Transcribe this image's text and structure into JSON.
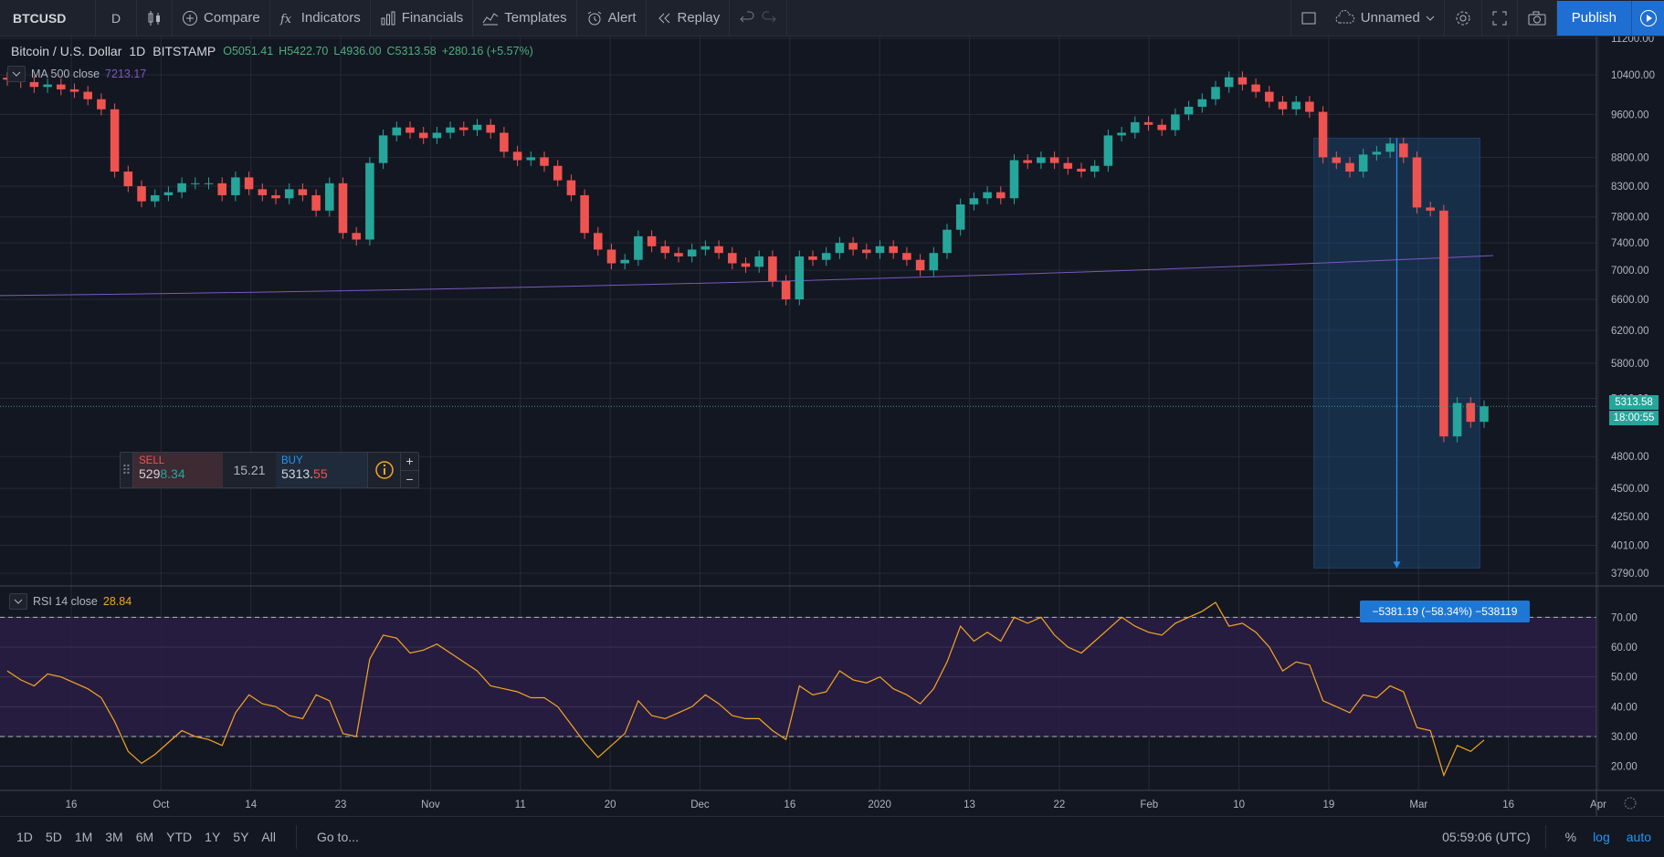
{
  "toolbar": {
    "symbol": "BTCUSD",
    "interval": "D",
    "compare_label": "Compare",
    "indicators_label": "Indicators",
    "financials_label": "Financials",
    "templates_label": "Templates",
    "alert_label": "Alert",
    "replay_label": "Replay",
    "layout_name": "Unnamed",
    "publish_label": "Publish"
  },
  "legend": {
    "title": "Bitcoin / U.S. Dollar",
    "interval": "1D",
    "exchange": "BITSTAMP",
    "open": "O5051.41",
    "high": "H5422.70",
    "low": "L4936.00",
    "close": "C5313.58",
    "change": "+280.16 (+5.57%)"
  },
  "ma_legend": {
    "label": "MA 500 close",
    "value": "7213.17"
  },
  "rsi_legend": {
    "label": "RSI 14 close",
    "value": "28.84"
  },
  "trade_widget": {
    "sell_label": "SELL",
    "sell_price_main": "529",
    "sell_price_tail": "8.34",
    "spread": "15.21",
    "buy_label": "BUY",
    "buy_price_main": "5313.",
    "buy_price_tail": "55",
    "plus": "+",
    "minus": "−"
  },
  "measure": {
    "label": "−5381.19 (−58.34%) −538119"
  },
  "price_axis": {
    "labels": [
      "11200.00",
      "10400.00",
      "9600.00",
      "8800.00",
      "8300.00",
      "7800.00",
      "7400.00",
      "7000.00",
      "6600.00",
      "6200.00",
      "5800.00",
      "5400.00",
      "4800.00",
      "4500.00",
      "4250.00",
      "4010.00",
      "3790.00"
    ],
    "last_price": "5313.58",
    "countdown": "18:00:55"
  },
  "rsi_axis": {
    "labels": [
      "70.00",
      "60.00",
      "50.00",
      "40.00",
      "30.00",
      "20.00"
    ]
  },
  "time_axis": {
    "labels": [
      "16",
      "Oct",
      "14",
      "23",
      "Nov",
      "11",
      "20",
      "Dec",
      "16",
      "2020",
      "13",
      "22",
      "Feb",
      "10",
      "19",
      "Mar",
      "16",
      "Apr"
    ]
  },
  "bottombar": {
    "ranges": [
      "1D",
      "5D",
      "1M",
      "3M",
      "6M",
      "YTD",
      "1Y",
      "5Y",
      "All"
    ],
    "goto": "Go to...",
    "time": "05:59:06 (UTC)",
    "percent": "%",
    "log": "log",
    "auto": "auto"
  },
  "colors": {
    "up": "#26a69a",
    "down": "#ef5350",
    "ma": "#7e57c2",
    "rsi": "#f5a623",
    "accent": "#1e77d3"
  },
  "chart_data": {
    "type": "candlestick",
    "title": "Bitcoin / U.S. Dollar",
    "series": [
      {
        "name": "price",
        "close": [
          10300,
          10250,
          10150,
          10200,
          10100,
          10050,
          9900,
          9700,
          8550,
          8300,
          8050,
          8150,
          8200,
          8350,
          8350,
          8350,
          8150,
          8450,
          8250,
          8150,
          8100,
          8250,
          8150,
          7900,
          8350,
          7550,
          7450,
          8700,
          9200,
          9350,
          9250,
          9150,
          9250,
          9350,
          9300,
          9400,
          9250,
          8900,
          8750,
          8800,
          8650,
          8400,
          8150,
          7550,
          7300,
          7100,
          7150,
          7500,
          7350,
          7250,
          7200,
          7300,
          7350,
          7250,
          7100,
          7050,
          7200,
          6850,
          6600,
          7200,
          7150,
          7250,
          7400,
          7300,
          7250,
          7350,
          7250,
          7150,
          7000,
          7250,
          7600,
          8000,
          8100,
          8200,
          8100,
          8750,
          8700,
          8800,
          8700,
          8600,
          8550,
          8650,
          9200,
          9250,
          9450,
          9400,
          9300,
          9600,
          9750,
          9900,
          10150,
          10350,
          10200,
          10050,
          9850,
          9700,
          9850,
          9650,
          8800,
          8700,
          8550,
          8850,
          8900,
          9050,
          8800,
          7950,
          7900,
          5000,
          5350,
          5150,
          5313.58
        ]
      },
      {
        "name": "MA 500 close",
        "values": [
          6650,
          7213.17
        ]
      },
      {
        "name": "RSI 14 close",
        "values": [
          52,
          49,
          47,
          51,
          50,
          48,
          46,
          43,
          35,
          25,
          21,
          24,
          28,
          32,
          30,
          29,
          27,
          38,
          44,
          41,
          40,
          37,
          36,
          44,
          42,
          31,
          30,
          56,
          64,
          63,
          58,
          59,
          61,
          58,
          55,
          52,
          47,
          46,
          45,
          43,
          43,
          40,
          34,
          28,
          23,
          27,
          31,
          42,
          37,
          36,
          38,
          40,
          44,
          41,
          37,
          36,
          36,
          32,
          29,
          47,
          44,
          45,
          52,
          49,
          48,
          50,
          46,
          44,
          41,
          46,
          55,
          67,
          62,
          65,
          62,
          70,
          68,
          70,
          64,
          60,
          58,
          62,
          66,
          70,
          67,
          65,
          64,
          68,
          70,
          72,
          75,
          67,
          68,
          65,
          60,
          52,
          55,
          54,
          42,
          40,
          38,
          44,
          43,
          47,
          45,
          33,
          32,
          17,
          27,
          25,
          28.84
        ]
      }
    ],
    "ylim": [
      3790,
      11200
    ],
    "rsi_ylim": [
      15,
      75
    ],
    "rsi_bands": [
      30,
      70
    ]
  }
}
